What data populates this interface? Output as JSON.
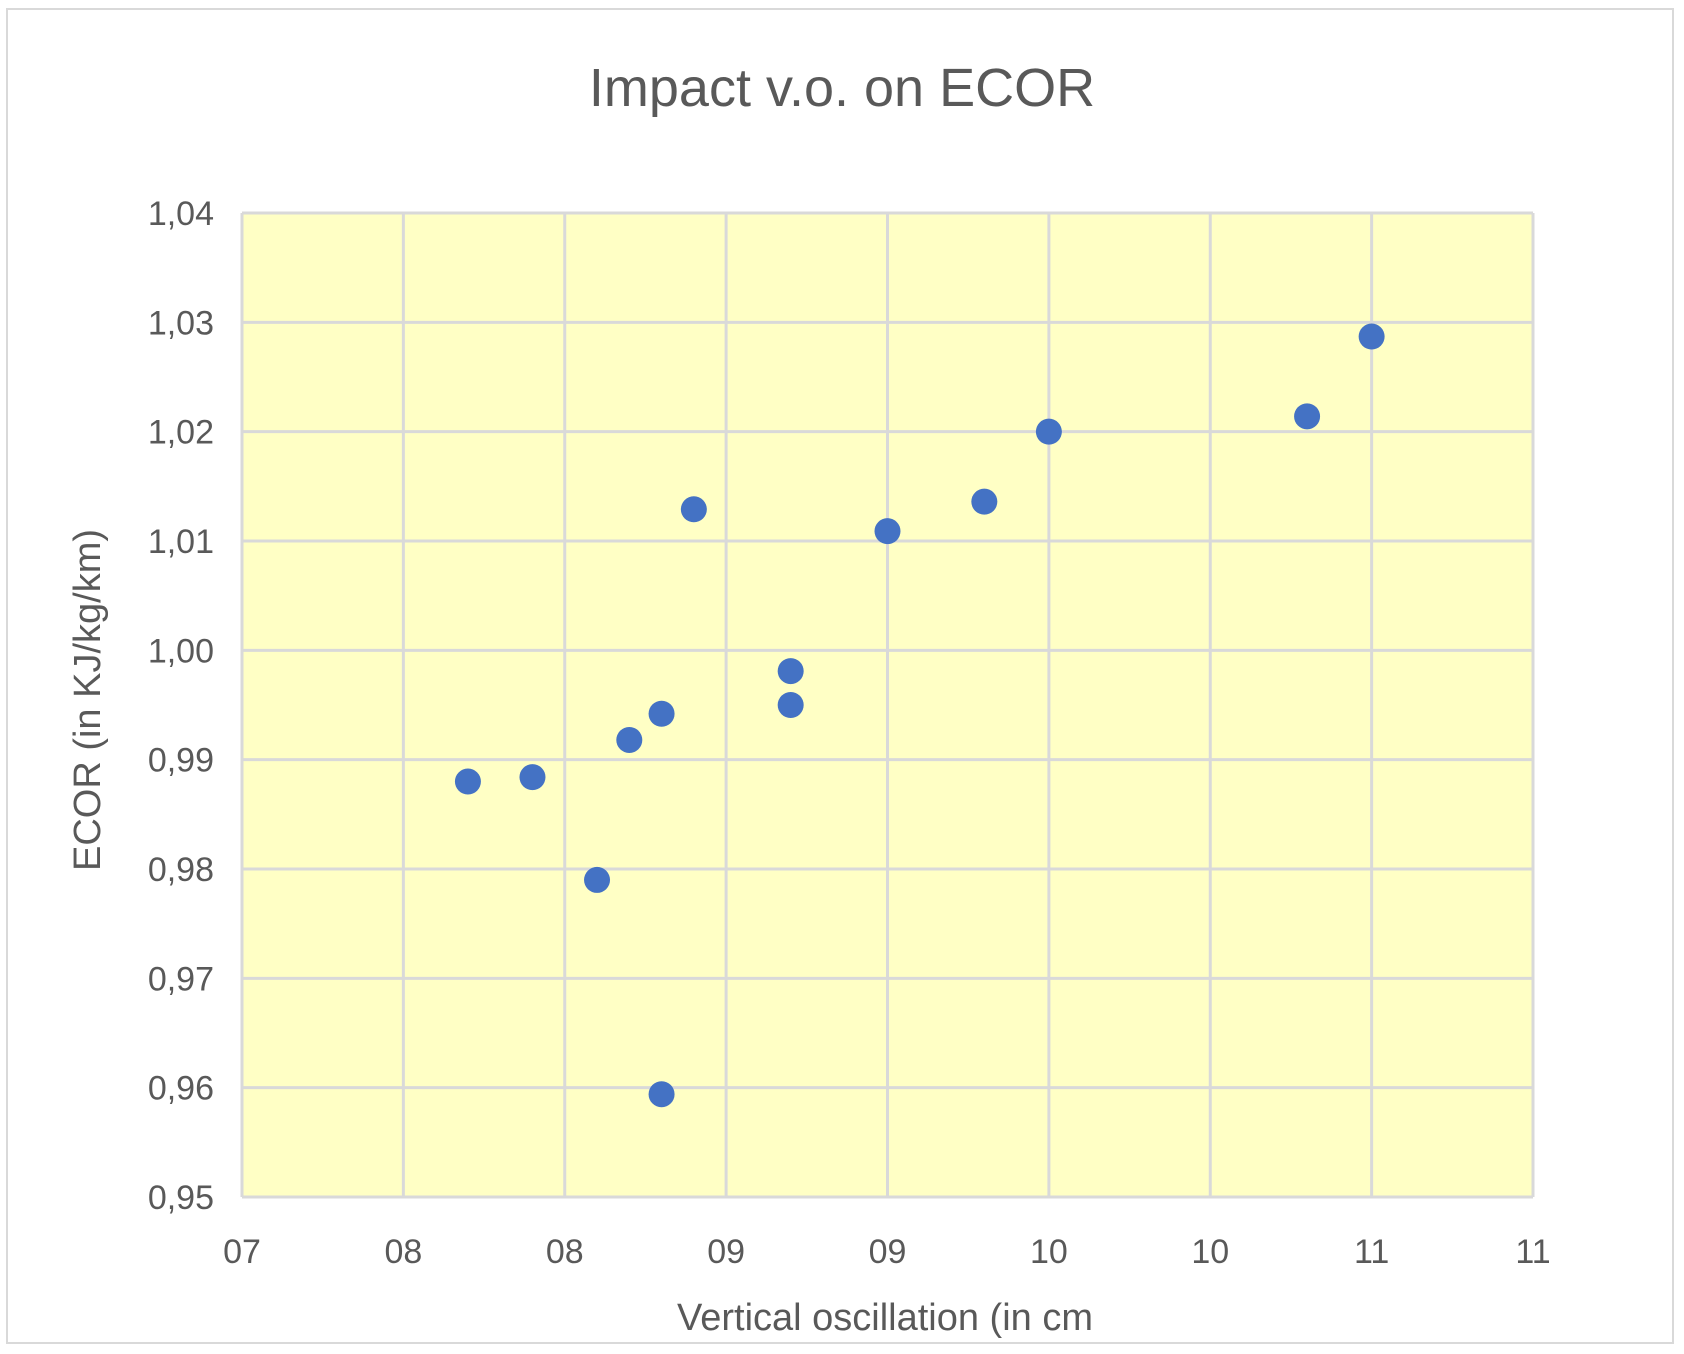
{
  "chart_data": {
    "type": "scatter",
    "title": "Impact v.o. on ECOR",
    "xlabel": "Vertical oscillation (in cm",
    "ylabel": "ECOR (in KJ/kg/km)",
    "x_tick_labels": [
      "07",
      "08",
      "08",
      "09",
      "09",
      "10",
      "10",
      "11",
      "11"
    ],
    "y_tick_labels": [
      "0,95",
      "0,96",
      "0,97",
      "0,98",
      "0,99",
      "1,00",
      "1,01",
      "1,02",
      "1,03",
      "1,04"
    ],
    "xlim": [
      7.5,
      11.5
    ],
    "ylim": [
      0.95,
      1.04
    ],
    "grid": true,
    "legend": "none",
    "plot_background": "#FFFFC5",
    "marker_color": "#4472C4",
    "series": [
      {
        "points": [
          {
            "x": 8.2,
            "y": 0.988
          },
          {
            "x": 8.4,
            "y": 0.9884
          },
          {
            "x": 8.6,
            "y": 0.979
          },
          {
            "x": 8.7,
            "y": 0.9918
          },
          {
            "x": 8.8,
            "y": 0.9942
          },
          {
            "x": 8.8,
            "y": 0.9594
          },
          {
            "x": 8.9,
            "y": 1.0129
          },
          {
            "x": 9.2,
            "y": 0.9981
          },
          {
            "x": 9.2,
            "y": 0.995
          },
          {
            "x": 9.5,
            "y": 1.0109
          },
          {
            "x": 9.8,
            "y": 1.0136
          },
          {
            "x": 10.0,
            "y": 1.02
          },
          {
            "x": 10.8,
            "y": 1.0214
          },
          {
            "x": 11.0,
            "y": 1.0287
          }
        ]
      }
    ]
  }
}
